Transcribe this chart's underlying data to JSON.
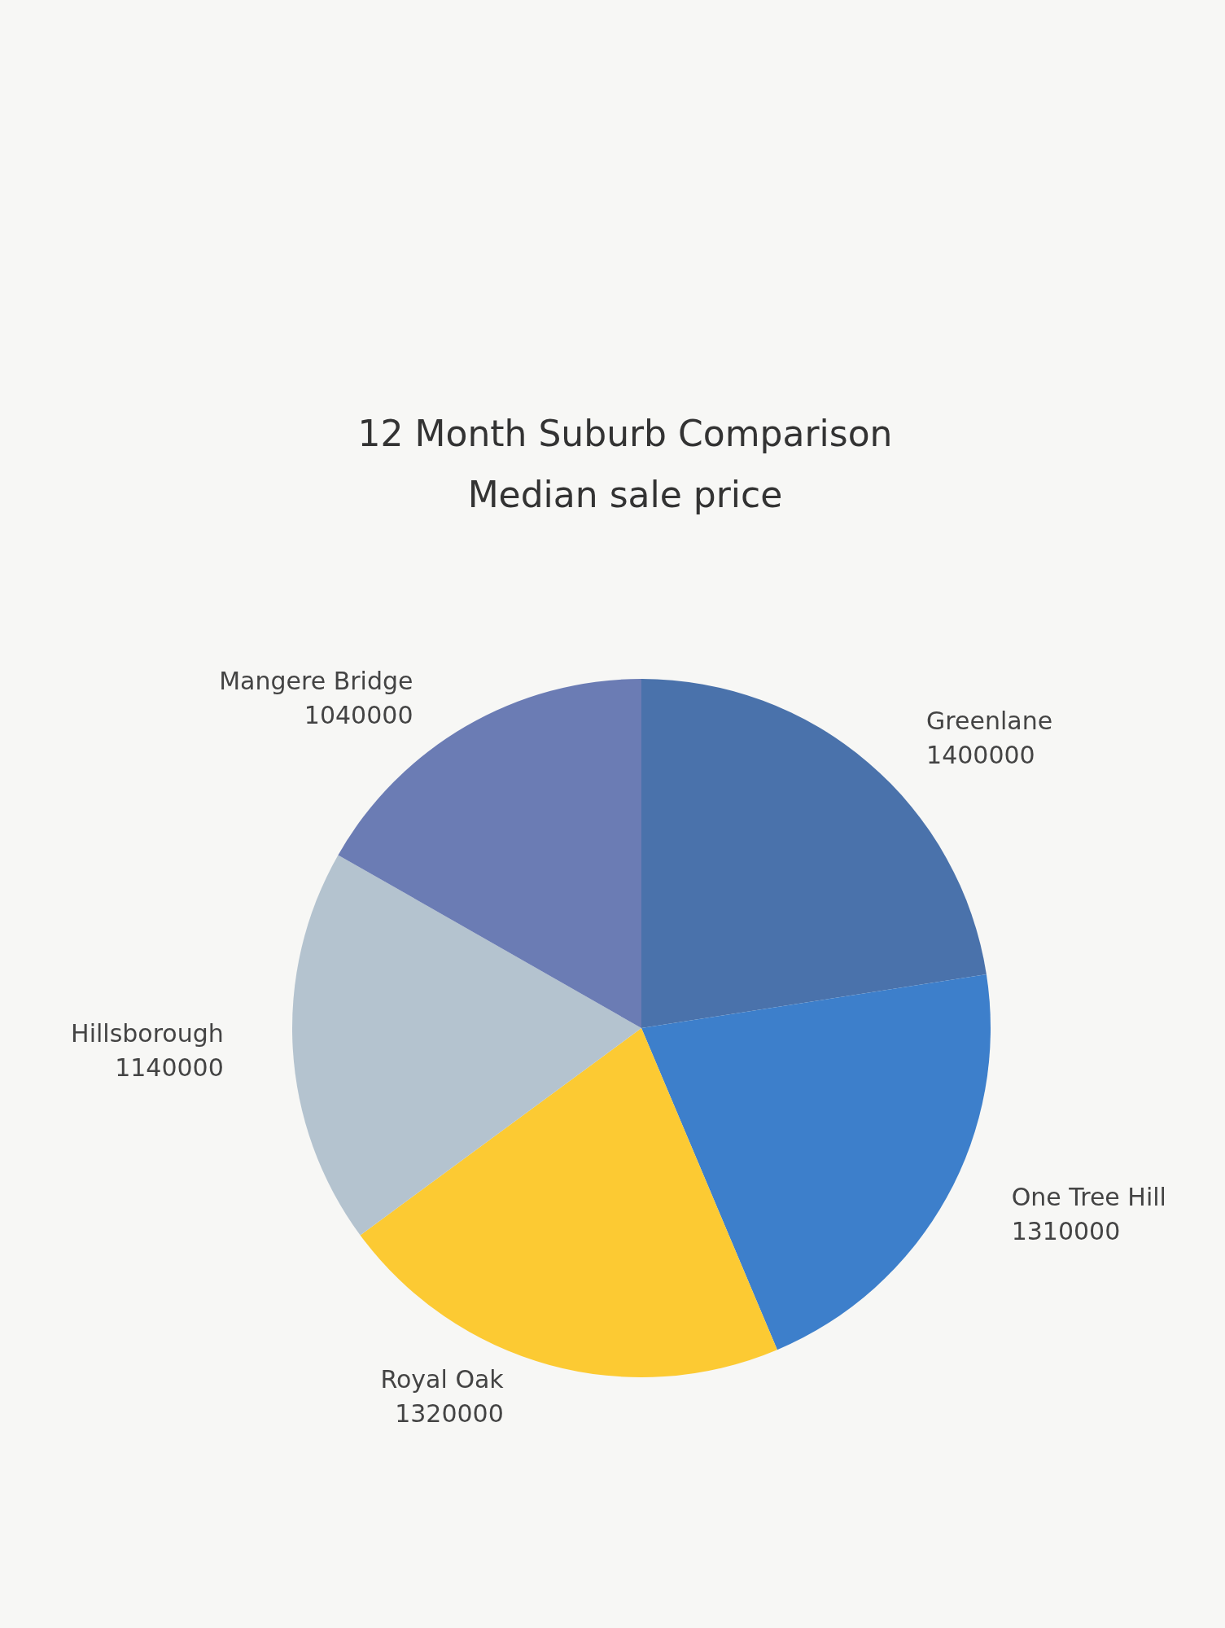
{
  "chart_data": {
    "type": "pie",
    "title": "12 Month Suburb Comparison",
    "subtitle": "Median sale price",
    "categories": [
      "Greenlane",
      "One Tree Hill",
      "Royal Oak",
      "Hillsborough",
      "Mangere Bridge"
    ],
    "values": [
      1400000,
      1310000,
      1320000,
      1140000,
      1040000
    ],
    "colors": [
      "#4a72ab",
      "#3d7fcb",
      "#fcca33",
      "#b4c3cf",
      "#6b7cb4"
    ],
    "data_labels": true
  }
}
